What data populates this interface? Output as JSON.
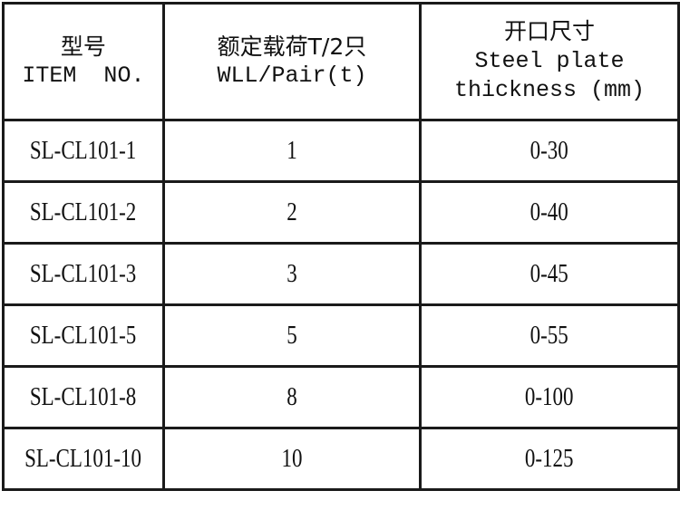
{
  "header": [
    {
      "zh": "型号",
      "en": [
        "ITEM  NO."
      ]
    },
    {
      "zh": "额定载荷T/2只",
      "en": [
        "WLL/Pair(t)"
      ]
    },
    {
      "zh": "开口尺寸",
      "en": [
        "Steel plate",
        "thickness (mm)"
      ]
    }
  ],
  "rows": [
    [
      "SL-CL101-1",
      "1",
      "0-30"
    ],
    [
      "SL-CL101-2",
      "2",
      "0-40"
    ],
    [
      "SL-CL101-3",
      "3",
      "0-45"
    ],
    [
      "SL-CL101-5",
      "5",
      "0-55"
    ],
    [
      "SL-CL101-8",
      "8",
      "0-100"
    ],
    [
      "SL-CL101-10",
      "10",
      "0-125"
    ]
  ]
}
